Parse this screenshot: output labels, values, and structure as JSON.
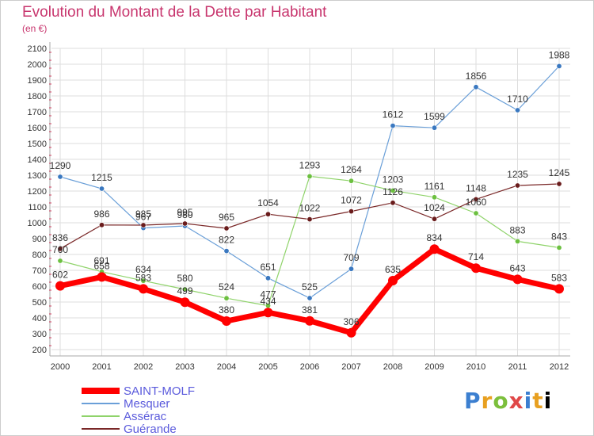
{
  "header": {
    "title": "Evolution du Montant de la Dette par Habitant",
    "subtitle": "(en €)"
  },
  "logo": {
    "text": "Proxiti"
  },
  "chart_data": {
    "type": "line",
    "x": [
      "2000",
      "2001",
      "2002",
      "2003",
      "2004",
      "2005",
      "2006",
      "2007",
      "2008",
      "2009",
      "2010",
      "2011",
      "2012"
    ],
    "ylim": [
      200,
      2100
    ],
    "yticks": [
      200,
      300,
      400,
      500,
      600,
      700,
      800,
      900,
      1000,
      1100,
      1200,
      1300,
      1400,
      1500,
      1600,
      1700,
      1800,
      1900,
      2000,
      2100
    ],
    "grid": true,
    "legend_position": "bottom-left",
    "series": [
      {
        "name": "Mesquer",
        "color": "#6a9fd8",
        "marker": "#3a78c0",
        "width": 1.2,
        "values": [
          1290,
          1215,
          967,
          980,
          822,
          651,
          525,
          709,
          1612,
          1599,
          1856,
          1710,
          1988
        ],
        "labels": [
          "1290",
          "1215",
          "967",
          "980",
          "822",
          "651",
          "525",
          "709",
          "1612",
          "1599",
          "1856",
          "1710",
          "1988"
        ]
      },
      {
        "name": "Assérac",
        "color": "#8fd36a",
        "marker": "#6cc040",
        "width": 1.2,
        "values": [
          760,
          691,
          634,
          580,
          524,
          477,
          1293,
          1264,
          1203,
          1161,
          1060,
          883,
          843
        ],
        "labels": [
          "760",
          "691",
          "634",
          "580",
          "524",
          "477",
          "1293",
          "1264",
          "1203",
          "1161",
          "1060",
          "883",
          "843"
        ]
      },
      {
        "name": "Guérande",
        "color": "#7a2828",
        "marker": "#6a1c1c",
        "width": 1.2,
        "values": [
          836,
          986,
          985,
          995,
          965,
          1054,
          1022,
          1072,
          1126,
          1024,
          1148,
          1235,
          1245
        ],
        "labels": [
          "836",
          "986",
          "985",
          "995",
          "965",
          "1054",
          "1022",
          "1072",
          "1126",
          "1024",
          "1148",
          "1235",
          "1245"
        ]
      },
      {
        "name": "SAINT-MOLF",
        "color": "#ff0000",
        "marker": "#ff0000",
        "width": 7,
        "values": [
          602,
          658,
          583,
          499,
          380,
          434,
          381,
          306,
          635,
          834,
          714,
          643,
          583
        ],
        "labels": [
          "602",
          "658",
          "583",
          "499",
          "380",
          "434",
          "381",
          "306",
          "635",
          "834",
          "714",
          "643",
          "583"
        ]
      }
    ],
    "legend_order": [
      "SAINT-MOLF",
      "Mesquer",
      "Assérac",
      "Guérande"
    ]
  }
}
